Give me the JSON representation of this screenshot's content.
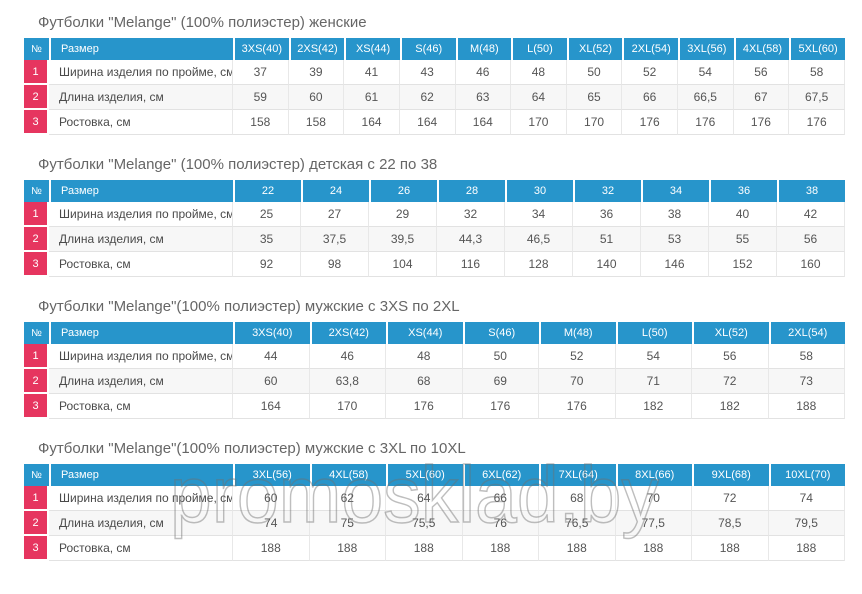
{
  "colors": {
    "header_bg": "#2795cb",
    "row_number_bg": "#e6355f",
    "title_text": "#666666",
    "body_text": "#555555",
    "stripe_bg": "#f7f7f7",
    "watermark_outline": "#6e6e6e"
  },
  "watermark": {
    "text": "promosklad.by"
  },
  "tables": [
    {
      "title": "Футболки \"Melange\" (100% полиэстер) женские",
      "columns": [
        "№",
        "Размер",
        "3XS(40)",
        "2XS(42)",
        "XS(44)",
        "S(46)",
        "M(48)",
        "L(50)",
        "XL(52)",
        "2XL(54)",
        "3XL(56)",
        "4XL(58)",
        "5XL(60)"
      ],
      "rows": [
        {
          "num": "1",
          "label": "Ширина изделия по пройме, см",
          "values": [
            "37",
            "39",
            "41",
            "43",
            "46",
            "48",
            "50",
            "52",
            "54",
            "56",
            "58"
          ]
        },
        {
          "num": "2",
          "label": "Длина изделия, см",
          "values": [
            "59",
            "60",
            "61",
            "62",
            "63",
            "64",
            "65",
            "66",
            "66,5",
            "67",
            "67,5"
          ]
        },
        {
          "num": "3",
          "label": "Ростовка, см",
          "values": [
            "158",
            "158",
            "164",
            "164",
            "164",
            "170",
            "170",
            "176",
            "176",
            "176",
            "176"
          ]
        }
      ]
    },
    {
      "title": "Футболки \"Melange\" (100% полиэстер) детская с 22 по 38",
      "columns": [
        "№",
        "Размер",
        "22",
        "24",
        "26",
        "28",
        "30",
        "32",
        "34",
        "36",
        "38"
      ],
      "rows": [
        {
          "num": "1",
          "label": "Ширина изделия по пройме, см",
          "values": [
            "25",
            "27",
            "29",
            "32",
            "34",
            "36",
            "38",
            "40",
            "42"
          ]
        },
        {
          "num": "2",
          "label": "Длина изделия, см",
          "values": [
            "35",
            "37,5",
            "39,5",
            "44,3",
            "46,5",
            "51",
            "53",
            "55",
            "56"
          ]
        },
        {
          "num": "3",
          "label": "Ростовка, см",
          "values": [
            "92",
            "98",
            "104",
            "116",
            "128",
            "140",
            "146",
            "152",
            "160"
          ]
        }
      ]
    },
    {
      "title": "Футболки \"Melange\"(100% полиэстер) мужские с 3XS по 2XL",
      "columns": [
        "№",
        "Размер",
        "3XS(40)",
        "2XS(42)",
        "XS(44)",
        "S(46)",
        "M(48)",
        "L(50)",
        "XL(52)",
        "2XL(54)"
      ],
      "rows": [
        {
          "num": "1",
          "label": "Ширина изделия по пройме, см",
          "values": [
            "44",
            "46",
            "48",
            "50",
            "52",
            "54",
            "56",
            "58"
          ]
        },
        {
          "num": "2",
          "label": "Длина изделия, см",
          "values": [
            "60",
            "63,8",
            "68",
            "69",
            "70",
            "71",
            "72",
            "73"
          ]
        },
        {
          "num": "3",
          "label": "Ростовка, см",
          "values": [
            "164",
            "170",
            "176",
            "176",
            "176",
            "182",
            "182",
            "188"
          ]
        }
      ]
    },
    {
      "title": "Футболки \"Melange\"(100% полиэстер) мужские с 3XL по 10XL",
      "columns": [
        "№",
        "Размер",
        "3XL(56)",
        "4XL(58)",
        "5XL(60)",
        "6XL(62)",
        "7XL(64)",
        "8XL(66)",
        "9XL(68)",
        "10XL(70)"
      ],
      "rows": [
        {
          "num": "1",
          "label": "Ширина изделия по пройме, см",
          "values": [
            "60",
            "62",
            "64",
            "66",
            "68",
            "70",
            "72",
            "74"
          ]
        },
        {
          "num": "2",
          "label": "Длина изделия, см",
          "values": [
            "74",
            "75",
            "75,5",
            "76",
            "76,5",
            "77,5",
            "78,5",
            "79,5"
          ]
        },
        {
          "num": "3",
          "label": "Ростовка, см",
          "values": [
            "188",
            "188",
            "188",
            "188",
            "188",
            "188",
            "188",
            "188"
          ]
        }
      ]
    }
  ]
}
